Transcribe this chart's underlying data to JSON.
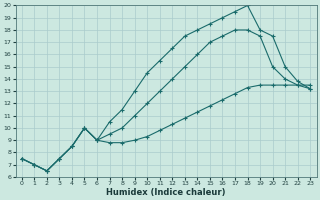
{
  "xlabel": "Humidex (Indice chaleur)",
  "xlim": [
    -0.5,
    23.5
  ],
  "ylim": [
    6,
    20
  ],
  "xticks": [
    0,
    1,
    2,
    3,
    4,
    5,
    6,
    7,
    8,
    9,
    10,
    11,
    12,
    13,
    14,
    15,
    16,
    17,
    18,
    19,
    20,
    21,
    22,
    23
  ],
  "yticks": [
    6,
    7,
    8,
    9,
    10,
    11,
    12,
    13,
    14,
    15,
    16,
    17,
    18,
    19,
    20
  ],
  "bg_color": "#cce8e0",
  "grid_color": "#aacccc",
  "line_color": "#1a6b6b",
  "line1_x": [
    0,
    1,
    2,
    3,
    4,
    5,
    6,
    7,
    8,
    9,
    10,
    11,
    12,
    13,
    14,
    15,
    16,
    17,
    18,
    19,
    20,
    21,
    22,
    23
  ],
  "line1_y": [
    7.5,
    7.0,
    6.5,
    7.5,
    8.5,
    10.0,
    9.0,
    10.5,
    11.5,
    13.0,
    14.5,
    15.5,
    16.5,
    17.5,
    18.0,
    18.5,
    19.0,
    19.5,
    20.0,
    18.0,
    17.5,
    15.0,
    13.8,
    13.2
  ],
  "line2_x": [
    0,
    1,
    2,
    3,
    4,
    5,
    6,
    7,
    8,
    9,
    10,
    11,
    12,
    13,
    14,
    15,
    16,
    17,
    18,
    19,
    20,
    21,
    22,
    23
  ],
  "line2_y": [
    7.5,
    7.0,
    6.5,
    7.5,
    8.5,
    10.0,
    9.0,
    9.5,
    10.0,
    11.0,
    12.0,
    13.0,
    14.0,
    15.0,
    16.0,
    17.0,
    17.5,
    18.0,
    18.0,
    17.5,
    15.0,
    14.0,
    13.5,
    13.2
  ],
  "line3_x": [
    0,
    1,
    2,
    3,
    4,
    5,
    6,
    7,
    8,
    9,
    10,
    11,
    12,
    13,
    14,
    15,
    16,
    17,
    18,
    19,
    20,
    21,
    22,
    23
  ],
  "line3_y": [
    7.5,
    7.0,
    6.5,
    7.5,
    8.5,
    10.0,
    9.0,
    8.8,
    8.8,
    9.0,
    9.3,
    9.8,
    10.3,
    10.8,
    11.3,
    11.8,
    12.3,
    12.8,
    13.3,
    13.5,
    13.5,
    13.5,
    13.5,
    13.5
  ]
}
